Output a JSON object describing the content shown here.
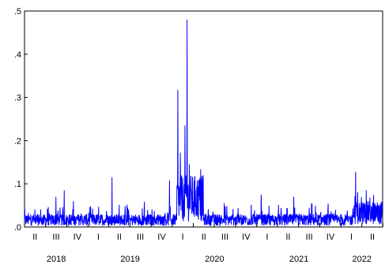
{
  "chart_data": {
    "type": "line",
    "title": "",
    "xlabel": "",
    "ylabel": "",
    "ylim": [
      0,
      0.5
    ],
    "y_ticks": [
      ".0",
      ".1",
      ".2",
      ".3",
      ".4",
      ".5"
    ],
    "x_range": [
      "2018-04-01",
      "2022-06-30"
    ],
    "quarter_ticks": [
      "II",
      "III",
      "IV",
      "I",
      "II",
      "III",
      "IV",
      "I",
      "II",
      "III",
      "IV",
      "I",
      "II",
      "III",
      "IV",
      "I",
      "II"
    ],
    "years": [
      "2018",
      "2019",
      "2020",
      "2021",
      "2022"
    ],
    "grid": false,
    "legend": "none",
    "color": "#0000ff",
    "series": [
      {
        "frequency": "daily",
        "x_start": "2018-04-01",
        "x_end": "2022-06-30",
        "baseline": 0.015,
        "peaks": [
          {
            "x": "2019-04-15",
            "y": 0.115
          },
          {
            "x": "2018-09-20",
            "y": 0.085
          },
          {
            "x": "2018-08-15",
            "y": 0.07
          },
          {
            "x": "2019-12-20",
            "y": 0.108
          },
          {
            "x": "2020-01-25",
            "y": 0.318
          },
          {
            "x": "2020-02-05",
            "y": 0.172
          },
          {
            "x": "2020-02-25",
            "y": 0.235
          },
          {
            "x": "2020-03-05",
            "y": 0.48
          },
          {
            "x": "2020-03-15",
            "y": 0.145
          },
          {
            "x": "2020-04-10",
            "y": 0.085
          },
          {
            "x": "2021-01-20",
            "y": 0.075
          },
          {
            "x": "2021-06-10",
            "y": 0.07
          },
          {
            "x": "2022-03-05",
            "y": 0.128
          },
          {
            "x": "2022-04-20",
            "y": 0.085
          }
        ],
        "points": []
      }
    ]
  }
}
